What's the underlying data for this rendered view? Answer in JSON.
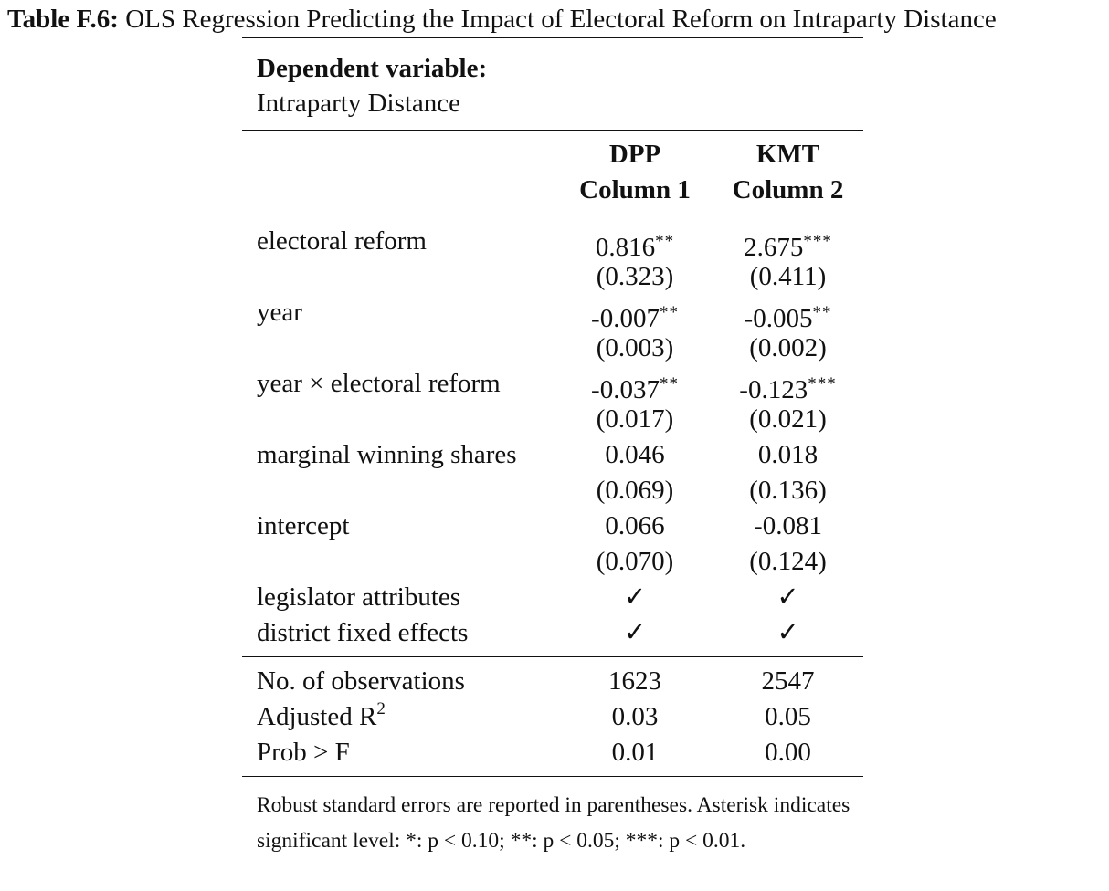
{
  "caption": {
    "label": "Table F.6:",
    "text": "OLS Regression Predicting the Impact of Electoral Reform on Intraparty Distance"
  },
  "dependent_variable": {
    "heading": "Dependent variable:",
    "name": "Intraparty Distance"
  },
  "columns": [
    {
      "party": "DPP",
      "label": "Column 1"
    },
    {
      "party": "KMT",
      "label": "Column 2"
    }
  ],
  "coef_rows": [
    {
      "label": "electoral reform",
      "c1": "0.816",
      "c1_stars": "**",
      "c2": "2.675",
      "c2_stars": "***"
    },
    {
      "label": "",
      "c1": "(0.323)",
      "c1_stars": "",
      "c2": "(0.411)",
      "c2_stars": ""
    },
    {
      "label": "year",
      "c1": "-0.007",
      "c1_stars": "**",
      "c2": "-0.005",
      "c2_stars": "**"
    },
    {
      "label": "",
      "c1": "(0.003)",
      "c1_stars": "",
      "c2": "(0.002)",
      "c2_stars": ""
    },
    {
      "label": "year × electoral reform",
      "c1": "-0.037",
      "c1_stars": "**",
      "c2": "-0.123",
      "c2_stars": "***"
    },
    {
      "label": "",
      "c1": "(0.017)",
      "c1_stars": "",
      "c2": "(0.021)",
      "c2_stars": ""
    },
    {
      "label": "marginal winning shares",
      "c1": "0.046",
      "c1_stars": "",
      "c2": "0.018",
      "c2_stars": ""
    },
    {
      "label": "",
      "c1": "(0.069)",
      "c1_stars": "",
      "c2": "(0.136)",
      "c2_stars": ""
    },
    {
      "label": "intercept",
      "c1": "0.066",
      "c1_stars": "",
      "c2": "-0.081",
      "c2_stars": ""
    },
    {
      "label": "",
      "c1": "(0.070)",
      "c1_stars": "",
      "c2": "(0.124)",
      "c2_stars": ""
    },
    {
      "label": "legislator attributes",
      "c1": "✓",
      "c1_stars": "",
      "c2": "✓",
      "c2_stars": ""
    },
    {
      "label": "district fixed effects",
      "c1": "✓",
      "c1_stars": "",
      "c2": "✓",
      "c2_stars": ""
    }
  ],
  "stats": {
    "observations": {
      "label": "No. of observations",
      "c1": "1623",
      "c2": "2547"
    },
    "adj_r2": {
      "label": "Adjusted R",
      "sup": "2",
      "c1": "0.03",
      "c2": "0.05"
    },
    "prob_f": {
      "label": "Prob > F",
      "c1": "0.01",
      "c2": "0.00"
    }
  },
  "note": "Robust standard errors are reported in parentheses. Asterisk indicates significant level: *: p < 0.10; **: p < 0.05; ***: p < 0.01."
}
